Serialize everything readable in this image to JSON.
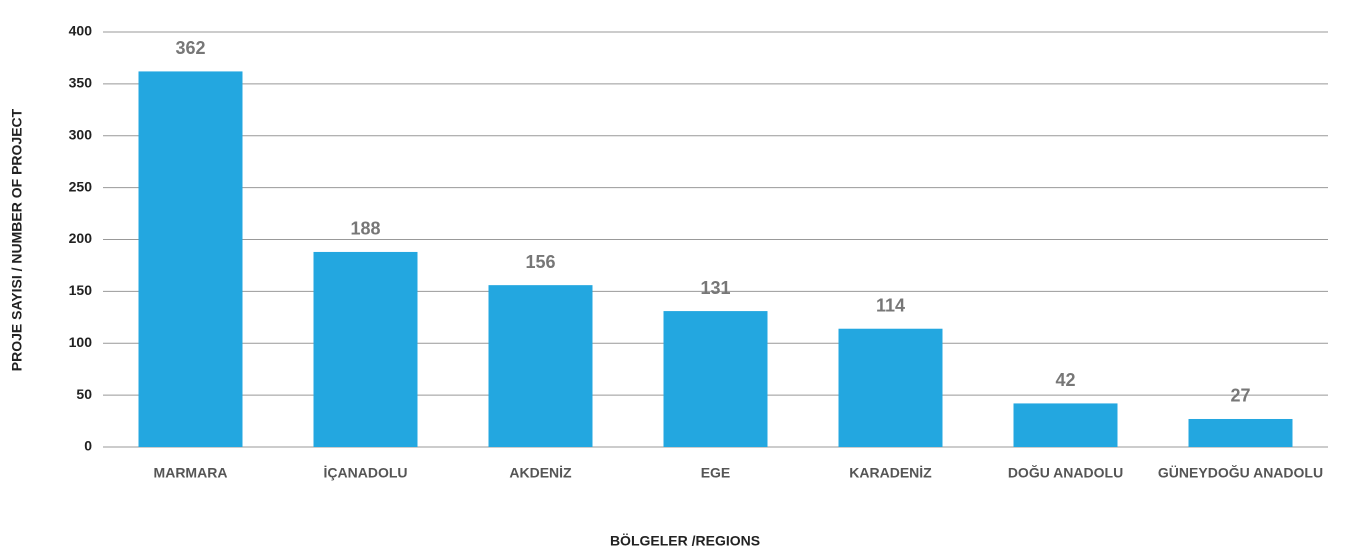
{
  "chart_data": {
    "type": "bar",
    "categories": [
      "MARMARA",
      "İÇANADOLU",
      "AKDENİZ",
      "EGE",
      "KARADENİZ",
      "DOĞU ANADOLU",
      "GÜNEYDOĞU ANADOLU"
    ],
    "values": [
      362,
      188,
      156,
      131,
      114,
      42,
      27
    ],
    "color": "#23a7e0",
    "ylim": [
      0,
      400
    ],
    "yticks": [
      0,
      50,
      100,
      150,
      200,
      250,
      300,
      350,
      400
    ],
    "grid": true,
    "xlabel": "BÖLGELER /REGIONS",
    "ylabel": "PROJE SAYISI / NUMBER OF PROJECT"
  }
}
